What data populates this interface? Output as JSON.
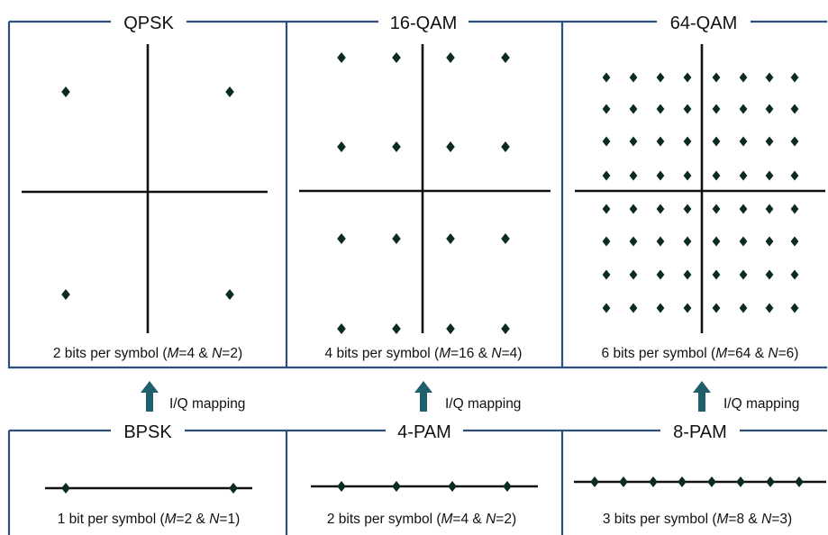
{
  "top_panels": [
    {
      "title": "QPSK",
      "caption": {
        "pre": "2 bits per symbol (",
        "M": "4",
        "N": "2"
      },
      "grid": 2
    },
    {
      "title": "16-QAM",
      "caption": {
        "pre": "4 bits per symbol (",
        "M": "16",
        "N": "4"
      },
      "grid": 4
    },
    {
      "title": "64-QAM",
      "caption": {
        "pre": "6 bits per symbol (",
        "M": "64",
        "N": "6"
      },
      "grid": 8
    }
  ],
  "bottom_panels": [
    {
      "title": "BPSK",
      "caption": {
        "pre": "1 bit per symbol (",
        "M": "2",
        "N": "1"
      },
      "points": 2
    },
    {
      "title": "4-PAM",
      "caption": {
        "pre": "2 bits per symbol (",
        "M": "4",
        "N": "2"
      },
      "points": 4
    },
    {
      "title": "8-PAM",
      "caption": {
        "pre": "3 bits per symbol (",
        "M": "8",
        "N": "3"
      },
      "points": 8
    }
  ],
  "arrow_label": "I/Q mapping",
  "caption_parts": {
    "M": "M",
    "N": "N",
    "eq": "=",
    "amp": " & ",
    "close": ")"
  },
  "colors": {
    "frame": "#2d4f7a",
    "arrow": "#1f5f6c",
    "dot": "#0b2a24"
  }
}
